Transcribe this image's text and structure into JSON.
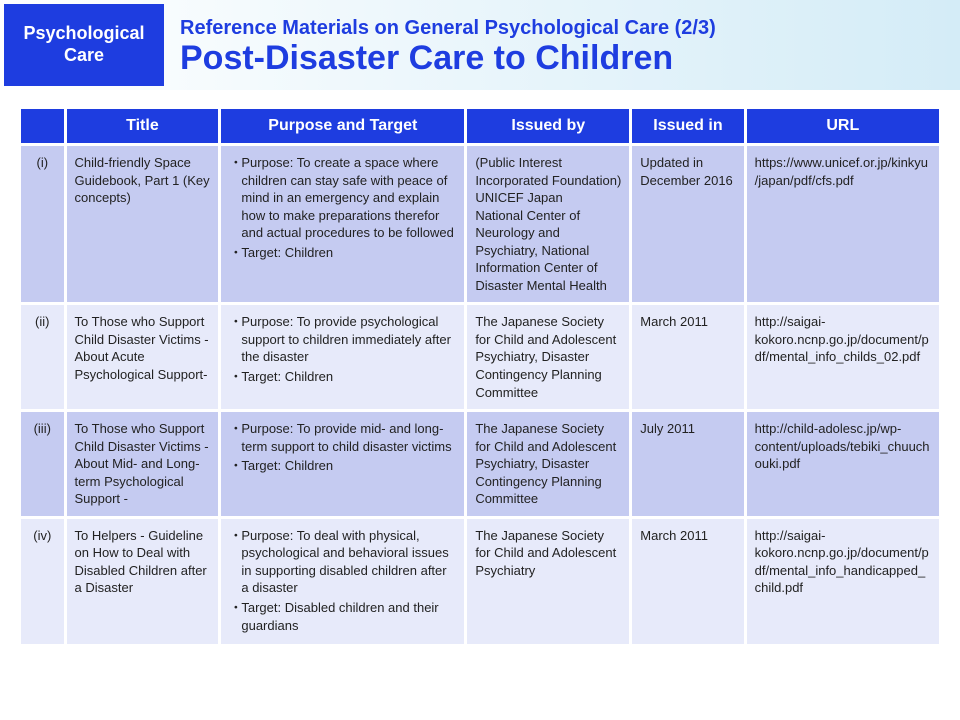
{
  "header": {
    "badge_line1": "Psychological",
    "badge_line2": "Care",
    "subtitle": "Reference Materials on General Psychological Care (2/3)",
    "title": "Post-Disaster Care to Children"
  },
  "columns": {
    "idx": "",
    "title": "Title",
    "purpose": "Purpose and Target",
    "issued_by": "Issued by",
    "issued_in": "Issued in",
    "url": "URL"
  },
  "rows": [
    {
      "idx": "(i)",
      "title": "Child-friendly Space Guidebook, Part 1 (Key concepts)",
      "purpose": [
        "Purpose: To create a space where children can stay safe with peace of mind in an emergency and explain how to make preparations therefor and actual procedures to be followed",
        "Target: Children"
      ],
      "issued_by": "(Public Interest Incorporated Foundation) UNICEF Japan\nNational Center of Neurology and Psychiatry, National Information Center of Disaster Mental Health",
      "issued_in": "Updated in December 2016",
      "url": "https://www.unicef.or.jp/kinkyu/japan/pdf/cfs.pdf"
    },
    {
      "idx": "(ii)",
      "title": "To Those who Support Child Disaster Victims - About Acute Psychological Support-",
      "purpose": [
        "Purpose: To provide psychological support to children immediately after the disaster",
        "Target: Children"
      ],
      "issued_by": "The Japanese Society for Child and Adolescent Psychiatry, Disaster Contingency Planning Committee",
      "issued_in": "March 2011",
      "url": "http://saigai-kokoro.ncnp.go.jp/document/pdf/mental_info_childs_02.pdf"
    },
    {
      "idx": "(iii)",
      "title": "To Those who Support Child Disaster Victims - About Mid- and Long-term Psychological Support -",
      "purpose": [
        "Purpose: To provide mid- and long-term support to child disaster victims",
        "Target: Children"
      ],
      "issued_by": "The Japanese Society for Child and Adolescent Psychiatry, Disaster Contingency Planning Committee",
      "issued_in": "July 2011",
      "url": "http://child-adolesc.jp/wp-content/uploads/tebiki_chuuchouki.pdf"
    },
    {
      "idx": "(iv)",
      "title": "To Helpers - Guideline on How to Deal with Disabled Children after a Disaster",
      "purpose": [
        "Purpose: To deal with physical, psychological and behavioral issues in supporting disabled children after a disaster",
        "Target: Disabled children and their guardians"
      ],
      "issued_by": "The Japanese Society for Child and Adolescent Psychiatry",
      "issued_in": "March 2011",
      "url": "http://saigai-kokoro.ncnp.go.jp/document/pdf/mental_info_handicapped_child.pdf"
    }
  ],
  "style": {
    "header_bg_gradient_from": "#ffffff",
    "header_bg_gradient_to": "#d4ecf7",
    "accent_color": "#1e3de0",
    "row_dark": "#c5cbf1",
    "row_light": "#e7eafa",
    "font_family": "Segoe UI, Arial, sans-serif",
    "title_fontsize_pt": 26,
    "subtitle_fontsize_pt": 15,
    "th_fontsize_pt": 12,
    "td_fontsize_pt": 10
  }
}
